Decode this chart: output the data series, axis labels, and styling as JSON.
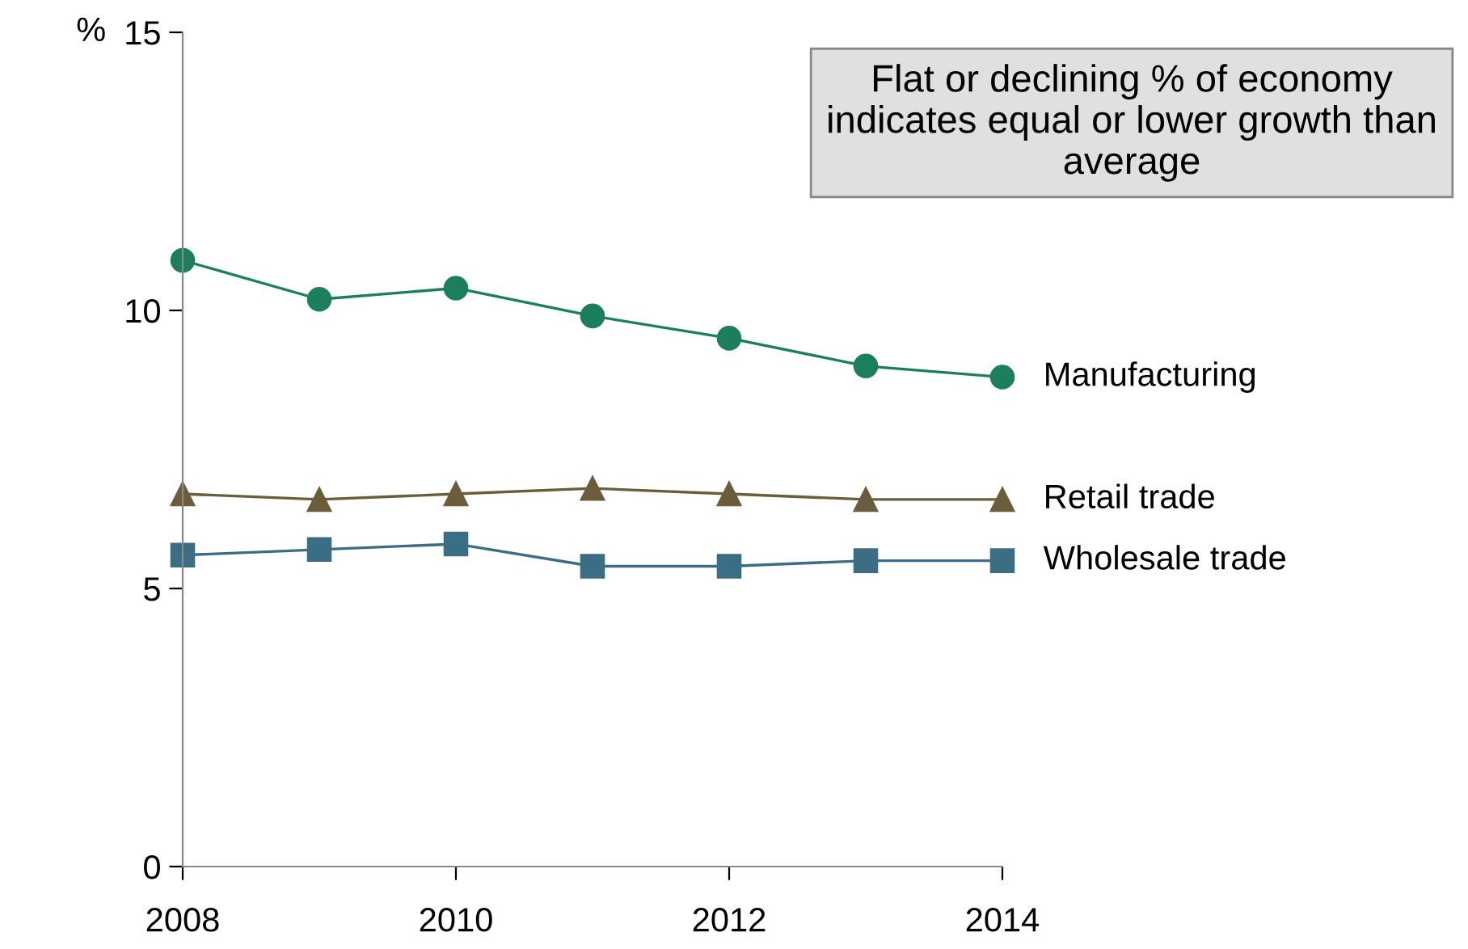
{
  "chart_data": {
    "type": "line",
    "ylabel": "%",
    "x": [
      2008,
      2009,
      2010,
      2011,
      2012,
      2013,
      2014
    ],
    "series": [
      {
        "name": "Manufacturing",
        "color": "#1b7f5b",
        "values": [
          10.9,
          10.2,
          10.4,
          9.9,
          9.5,
          9.0,
          8.8
        ],
        "marker": "circle"
      },
      {
        "name": "Retail trade",
        "color": "#6b5d3b",
        "values": [
          6.7,
          6.6,
          6.7,
          6.8,
          6.7,
          6.6,
          6.6
        ],
        "marker": "triangle"
      },
      {
        "name": "Wholesale trade",
        "color": "#3b6e85",
        "values": [
          5.6,
          5.7,
          5.8,
          5.4,
          5.4,
          5.5,
          5.5
        ],
        "marker": "square"
      }
    ],
    "xlim": [
      2008,
      2014
    ],
    "xticks": [
      2008,
      2010,
      2012,
      2014
    ],
    "ylim": [
      0,
      15
    ],
    "yticks": [
      0,
      5,
      10,
      15
    ],
    "grid": false,
    "legend": false,
    "line_style": "solid",
    "annotations": [
      "Flat or declining % of economy indicates equal or lower growth than average"
    ]
  }
}
